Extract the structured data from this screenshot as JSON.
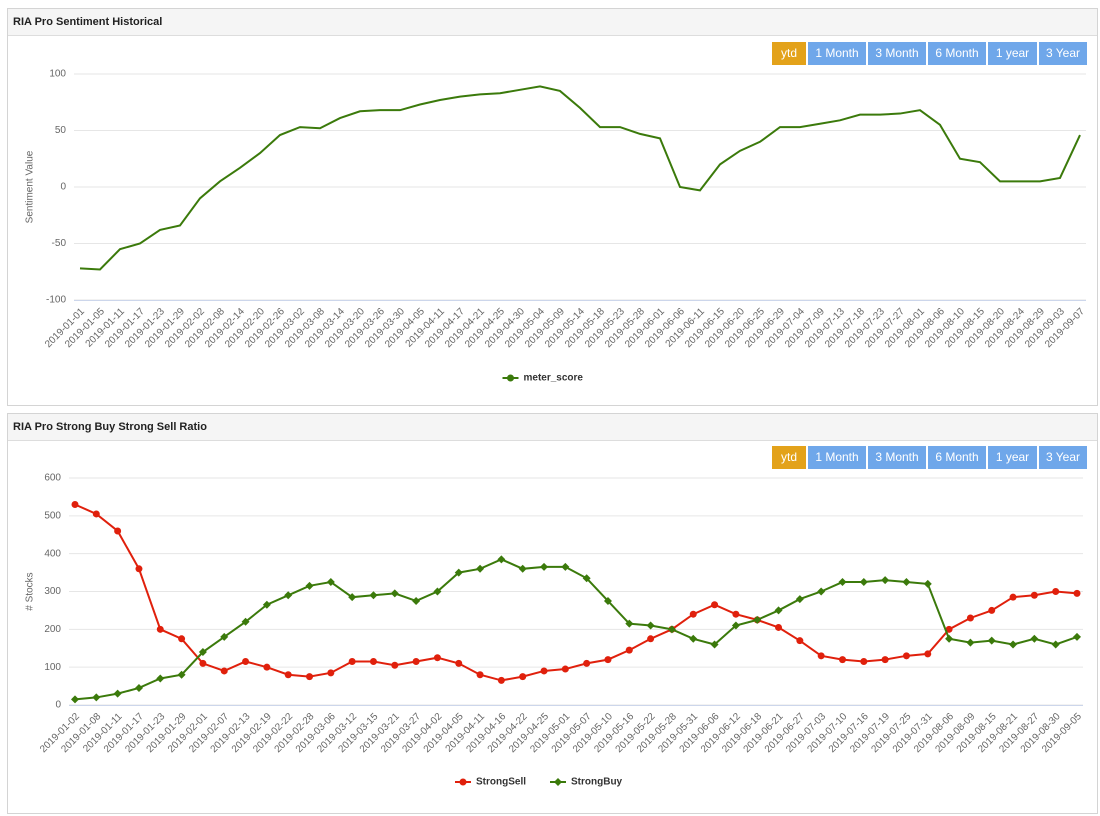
{
  "chart_data": [
    {
      "type": "line",
      "title": "RIA Pro Sentiment Historical",
      "buttons": [
        "ytd",
        "1 Month",
        "3 Month",
        "6 Month",
        "1 year",
        "3 Year"
      ],
      "selected_button": 0,
      "y_label": "Sentiment Value",
      "categories": [
        "2019-01-01",
        "2019-01-05",
        "2019-01-11",
        "2019-01-17",
        "2019-01-23",
        "2019-01-29",
        "2019-02-02",
        "2019-02-08",
        "2019-02-14",
        "2019-02-20",
        "2019-02-26",
        "2019-03-02",
        "2019-03-08",
        "2019-03-14",
        "2019-03-20",
        "2019-03-26",
        "2019-03-30",
        "2019-04-05",
        "2019-04-11",
        "2019-04-17",
        "2019-04-21",
        "2019-04-25",
        "2019-04-30",
        "2019-05-04",
        "2019-05-09",
        "2019-05-14",
        "2019-05-18",
        "2019-05-23",
        "2019-05-28",
        "2019-06-01",
        "2019-06-06",
        "2019-06-11",
        "2019-06-15",
        "2019-06-20",
        "2019-06-25",
        "2019-06-29",
        "2019-07-04",
        "2019-07-09",
        "2019-07-13",
        "2019-07-18",
        "2019-07-23",
        "2019-07-27",
        "2019-08-01",
        "2019-08-06",
        "2019-08-10",
        "2019-08-15",
        "2019-08-20",
        "2019-08-24",
        "2019-08-29",
        "2019-09-03",
        "2019-09-07"
      ],
      "series": [
        {
          "name": "meter_score",
          "color": "#3b7a0b",
          "marker": "none",
          "values": [
            -72,
            -73,
            -55,
            -50,
            -38,
            -34,
            -10,
            5,
            17,
            30,
            46,
            53,
            52,
            61,
            67,
            68,
            68,
            73,
            77,
            80,
            82,
            83,
            86,
            89,
            85,
            70,
            53,
            53,
            47,
            43,
            0,
            -3,
            20,
            32,
            40,
            53,
            53,
            56,
            59,
            64,
            64,
            65,
            68,
            55,
            25,
            22,
            5,
            5,
            5,
            8,
            46
          ]
        }
      ],
      "ylim": [
        -100,
        100
      ],
      "yticks": [
        -100,
        -50,
        0,
        50,
        100
      ],
      "grid": true
    },
    {
      "type": "line",
      "title": "RIA Pro Strong Buy Strong Sell Ratio",
      "buttons": [
        "ytd",
        "1 Month",
        "3 Month",
        "6 Month",
        "1 year",
        "3 Year"
      ],
      "selected_button": 0,
      "y_label": "# Stocks",
      "categories": [
        "2019-01-02",
        "2019-01-08",
        "2019-01-11",
        "2019-01-17",
        "2019-01-23",
        "2019-01-29",
        "2019-02-01",
        "2019-02-07",
        "2019-02-13",
        "2019-02-19",
        "2019-02-22",
        "2019-02-28",
        "2019-03-06",
        "2019-03-12",
        "2019-03-15",
        "2019-03-21",
        "2019-03-27",
        "2019-04-02",
        "2019-04-05",
        "2019-04-11",
        "2019-04-16",
        "2019-04-22",
        "2019-04-25",
        "2019-05-01",
        "2019-05-07",
        "2019-05-10",
        "2019-05-16",
        "2019-05-22",
        "2019-05-28",
        "2019-05-31",
        "2019-06-06",
        "2019-06-12",
        "2019-06-18",
        "2019-06-21",
        "2019-06-27",
        "2019-07-03",
        "2019-07-10",
        "2019-07-16",
        "2019-07-19",
        "2019-07-25",
        "2019-07-31",
        "2019-08-06",
        "2019-08-09",
        "2019-08-15",
        "2019-08-21",
        "2019-08-27",
        "2019-08-30",
        "2019-09-05"
      ],
      "series": [
        {
          "name": "StrongSell",
          "color": "#e0200c",
          "marker": "circle",
          "values": [
            530,
            505,
            460,
            360,
            200,
            175,
            110,
            90,
            115,
            100,
            80,
            75,
            85,
            115,
            115,
            105,
            115,
            125,
            110,
            80,
            65,
            75,
            90,
            95,
            110,
            120,
            145,
            175,
            200,
            240,
            265,
            240,
            225,
            205,
            170,
            130,
            120,
            115,
            120,
            130,
            135,
            200,
            230,
            250,
            285,
            290,
            300,
            295
          ]
        },
        {
          "name": "StrongBuy",
          "color": "#3b7a0b",
          "marker": "diamond",
          "values": [
            15,
            20,
            30,
            45,
            70,
            80,
            140,
            180,
            220,
            265,
            290,
            315,
            325,
            285,
            290,
            295,
            275,
            300,
            350,
            360,
            385,
            360,
            365,
            365,
            335,
            275,
            215,
            210,
            200,
            175,
            160,
            210,
            225,
            250,
            280,
            300,
            325,
            325,
            330,
            325,
            320,
            175,
            165,
            170,
            160,
            175,
            160,
            180
          ]
        }
      ],
      "ylim": [
        0,
        600
      ],
      "yticks": [
        0,
        100,
        200,
        300,
        400,
        500,
        600
      ],
      "grid": true
    }
  ]
}
